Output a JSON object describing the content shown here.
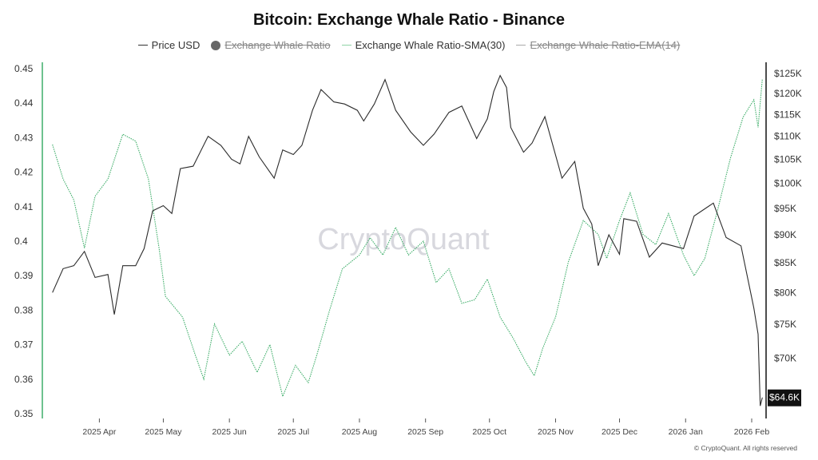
{
  "title": "Bitcoin: Exchange Whale Ratio - Binance",
  "legend": [
    {
      "label": "Price USD",
      "marker": "line",
      "active": true
    },
    {
      "label": "Exchange Whale Ratio",
      "marker": "dot",
      "active": false
    },
    {
      "label": "Exchange Whale Ratio-SMA(30)",
      "marker": "line",
      "active": true
    },
    {
      "label": "Exchange Whale Ratio-EMA(14)",
      "marker": "line",
      "active": false
    }
  ],
  "watermark": "CryptoQuant",
  "copyright": "© CryptoQuant. All rights reserved",
  "last_price_badge": "$64.6K",
  "colors": {
    "price": "#2b2b2b",
    "sma": "#3fae6a",
    "left_axis": "#3fae6a",
    "right_axis": "#111111",
    "badge_bg": "#111111"
  },
  "chart_data": {
    "type": "line",
    "title": "Bitcoin: Exchange Whale Ratio - Binance",
    "grid": false,
    "legend_position": "top-center",
    "x_ticks": [
      "2025 Apr",
      "2025 May",
      "2025 Jun",
      "2025 Jul",
      "2025 Aug",
      "2025 Sep",
      "2025 Oct",
      "2025 Nov",
      "2025 Dec",
      "2026 Jan",
      "2026 Feb"
    ],
    "y_left": {
      "ticks": [
        "0.45",
        "0.44",
        "0.43",
        "0.42",
        "0.41",
        "0.4",
        "0.39",
        "0.38",
        "0.37",
        "0.36",
        "0.35"
      ],
      "range": [
        0.35,
        0.45
      ]
    },
    "y_right": {
      "scale": "log",
      "ticks": [
        "$125K",
        "$120K",
        "$115K",
        "$110K",
        "$105K",
        "$100K",
        "$95K",
        "$90K",
        "$85K",
        "$80K",
        "$75K",
        "$70K"
      ],
      "tick_values": [
        125000,
        120000,
        115000,
        110000,
        105000,
        100000,
        95000,
        90000,
        85000,
        80000,
        75000,
        70000
      ],
      "range": [
        62500,
        127500
      ]
    },
    "series": [
      {
        "name": "Price USD",
        "axis": "right",
        "points": [
          [
            "2025-03-10",
            80000
          ],
          [
            "2025-03-15",
            84000
          ],
          [
            "2025-03-20",
            84500
          ],
          [
            "2025-03-25",
            87000
          ],
          [
            "2025-03-30",
            82500
          ],
          [
            "2025-04-05",
            83000
          ],
          [
            "2025-04-08",
            76500
          ],
          [
            "2025-04-12",
            84500
          ],
          [
            "2025-04-18",
            84500
          ],
          [
            "2025-04-22",
            87500
          ],
          [
            "2025-04-26",
            94500
          ],
          [
            "2025-05-01",
            95500
          ],
          [
            "2025-05-05",
            94000
          ],
          [
            "2025-05-09",
            103000
          ],
          [
            "2025-05-15",
            103500
          ],
          [
            "2025-05-22",
            110000
          ],
          [
            "2025-05-28",
            108000
          ],
          [
            "2025-06-02",
            105000
          ],
          [
            "2025-06-06",
            104000
          ],
          [
            "2025-06-10",
            110000
          ],
          [
            "2025-06-15",
            105500
          ],
          [
            "2025-06-22",
            101000
          ],
          [
            "2025-06-26",
            107000
          ],
          [
            "2025-07-01",
            106000
          ],
          [
            "2025-07-05",
            108000
          ],
          [
            "2025-07-10",
            116000
          ],
          [
            "2025-07-14",
            121000
          ],
          [
            "2025-07-20",
            118000
          ],
          [
            "2025-07-25",
            117500
          ],
          [
            "2025-07-31",
            116000
          ],
          [
            "2025-08-03",
            113500
          ],
          [
            "2025-08-08",
            117500
          ],
          [
            "2025-08-13",
            123500
          ],
          [
            "2025-08-18",
            116000
          ],
          [
            "2025-08-25",
            111000
          ],
          [
            "2025-08-31",
            108000
          ],
          [
            "2025-09-05",
            110500
          ],
          [
            "2025-09-12",
            115500
          ],
          [
            "2025-09-18",
            117000
          ],
          [
            "2025-09-25",
            109500
          ],
          [
            "2025-09-30",
            114000
          ],
          [
            "2025-10-03",
            120500
          ],
          [
            "2025-10-06",
            124500
          ],
          [
            "2025-10-09",
            121500
          ],
          [
            "2025-10-11",
            112000
          ],
          [
            "2025-10-17",
            106500
          ],
          [
            "2025-10-21",
            108500
          ],
          [
            "2025-10-27",
            114500
          ],
          [
            "2025-11-04",
            101000
          ],
          [
            "2025-11-10",
            104500
          ],
          [
            "2025-11-14",
            95000
          ],
          [
            "2025-11-18",
            92000
          ],
          [
            "2025-11-21",
            84500
          ],
          [
            "2025-11-26",
            90000
          ],
          [
            "2025-12-01",
            86500
          ],
          [
            "2025-12-03",
            93000
          ],
          [
            "2025-12-09",
            92500
          ],
          [
            "2025-12-15",
            86000
          ],
          [
            "2025-12-21",
            88500
          ],
          [
            "2025-12-31",
            87500
          ],
          [
            "2026-01-05",
            93500
          ],
          [
            "2026-01-14",
            96000
          ],
          [
            "2026-01-20",
            89500
          ],
          [
            "2026-01-27",
            88000
          ],
          [
            "2026-02-02",
            77500
          ],
          [
            "2026-02-04",
            73500
          ],
          [
            "2026-02-05",
            63500
          ],
          [
            "2026-02-06",
            64600
          ]
        ]
      },
      {
        "name": "Exchange Whale Ratio-SMA(30)",
        "axis": "left",
        "points": [
          [
            "2025-03-10",
            0.428
          ],
          [
            "2025-03-15",
            0.418
          ],
          [
            "2025-03-20",
            0.412
          ],
          [
            "2025-03-25",
            0.398
          ],
          [
            "2025-03-30",
            0.413
          ],
          [
            "2025-04-05",
            0.418
          ],
          [
            "2025-04-12",
            0.431
          ],
          [
            "2025-04-18",
            0.429
          ],
          [
            "2025-04-24",
            0.418
          ],
          [
            "2025-04-29",
            0.398
          ],
          [
            "2025-05-02",
            0.384
          ],
          [
            "2025-05-10",
            0.378
          ],
          [
            "2025-05-16",
            0.367
          ],
          [
            "2025-05-20",
            0.36
          ],
          [
            "2025-05-25",
            0.376
          ],
          [
            "2025-06-01",
            0.367
          ],
          [
            "2025-06-07",
            0.371
          ],
          [
            "2025-06-14",
            0.362
          ],
          [
            "2025-06-20",
            0.37
          ],
          [
            "2025-06-26",
            0.355
          ],
          [
            "2025-07-02",
            0.364
          ],
          [
            "2025-07-08",
            0.359
          ],
          [
            "2025-07-12",
            0.367
          ],
          [
            "2025-07-18",
            0.38
          ],
          [
            "2025-07-24",
            0.392
          ],
          [
            "2025-08-01",
            0.396
          ],
          [
            "2025-08-06",
            0.401
          ],
          [
            "2025-08-12",
            0.396
          ],
          [
            "2025-08-18",
            0.404
          ],
          [
            "2025-08-24",
            0.396
          ],
          [
            "2025-08-31",
            0.4
          ],
          [
            "2025-09-06",
            0.388
          ],
          [
            "2025-09-12",
            0.392
          ],
          [
            "2025-09-18",
            0.382
          ],
          [
            "2025-09-24",
            0.383
          ],
          [
            "2025-09-30",
            0.389
          ],
          [
            "2025-10-06",
            0.378
          ],
          [
            "2025-10-12",
            0.372
          ],
          [
            "2025-10-18",
            0.365
          ],
          [
            "2025-10-22",
            0.361
          ],
          [
            "2025-10-26",
            0.369
          ],
          [
            "2025-11-01",
            0.378
          ],
          [
            "2025-11-07",
            0.394
          ],
          [
            "2025-11-14",
            0.406
          ],
          [
            "2025-11-21",
            0.402
          ],
          [
            "2025-11-25",
            0.395
          ],
          [
            "2025-12-01",
            0.406
          ],
          [
            "2025-12-06",
            0.414
          ],
          [
            "2025-12-12",
            0.402
          ],
          [
            "2025-12-18",
            0.399
          ],
          [
            "2025-12-24",
            0.408
          ],
          [
            "2025-12-31",
            0.396
          ],
          [
            "2026-01-05",
            0.39
          ],
          [
            "2026-01-10",
            0.395
          ],
          [
            "2026-01-16",
            0.409
          ],
          [
            "2026-01-22",
            0.424
          ],
          [
            "2026-01-28",
            0.436
          ],
          [
            "2026-02-02",
            0.441
          ],
          [
            "2026-02-04",
            0.433
          ],
          [
            "2026-02-06",
            0.447
          ]
        ]
      }
    ]
  }
}
